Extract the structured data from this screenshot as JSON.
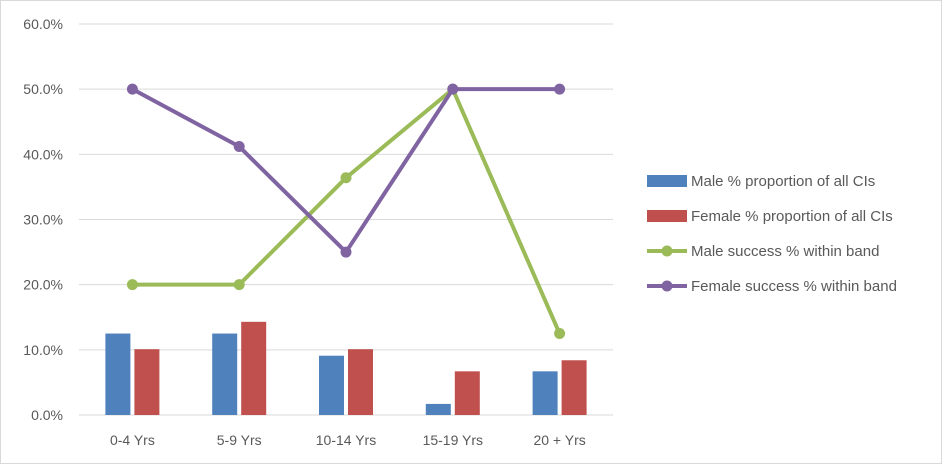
{
  "chart_data": {
    "type": "bar",
    "title": "",
    "xlabel": "",
    "ylabel": "",
    "categories": [
      "0-4 Yrs",
      "5-9 Yrs",
      "10-14 Yrs",
      "15-19 Yrs",
      "20 + Yrs"
    ],
    "ylim": [
      0,
      60
    ],
    "yticks": [
      0,
      10,
      20,
      30,
      40,
      50,
      60
    ],
    "ytick_labels": [
      "0.0%",
      "10.0%",
      "20.0%",
      "30.0%",
      "40.0%",
      "50.0%",
      "60.0%"
    ],
    "grid": true,
    "legend_position": "right",
    "series": [
      {
        "name": "Male % proportion of all CIs",
        "kind": "bar",
        "color": "#4f81bd",
        "values": [
          12.5,
          12.5,
          9.1,
          1.7,
          6.7
        ]
      },
      {
        "name": "Female % proportion of all CIs",
        "kind": "bar",
        "color": "#c0504d",
        "values": [
          10.1,
          14.3,
          10.1,
          6.7,
          8.4
        ]
      },
      {
        "name": "Male success % within band",
        "kind": "line",
        "color": "#9bbb59",
        "values": [
          20.0,
          20.0,
          36.4,
          50.0,
          12.5
        ]
      },
      {
        "name": "Female success % within band",
        "kind": "line",
        "color": "#8064a2",
        "values": [
          50.0,
          41.2,
          25.0,
          50.0,
          50.0
        ]
      }
    ]
  }
}
